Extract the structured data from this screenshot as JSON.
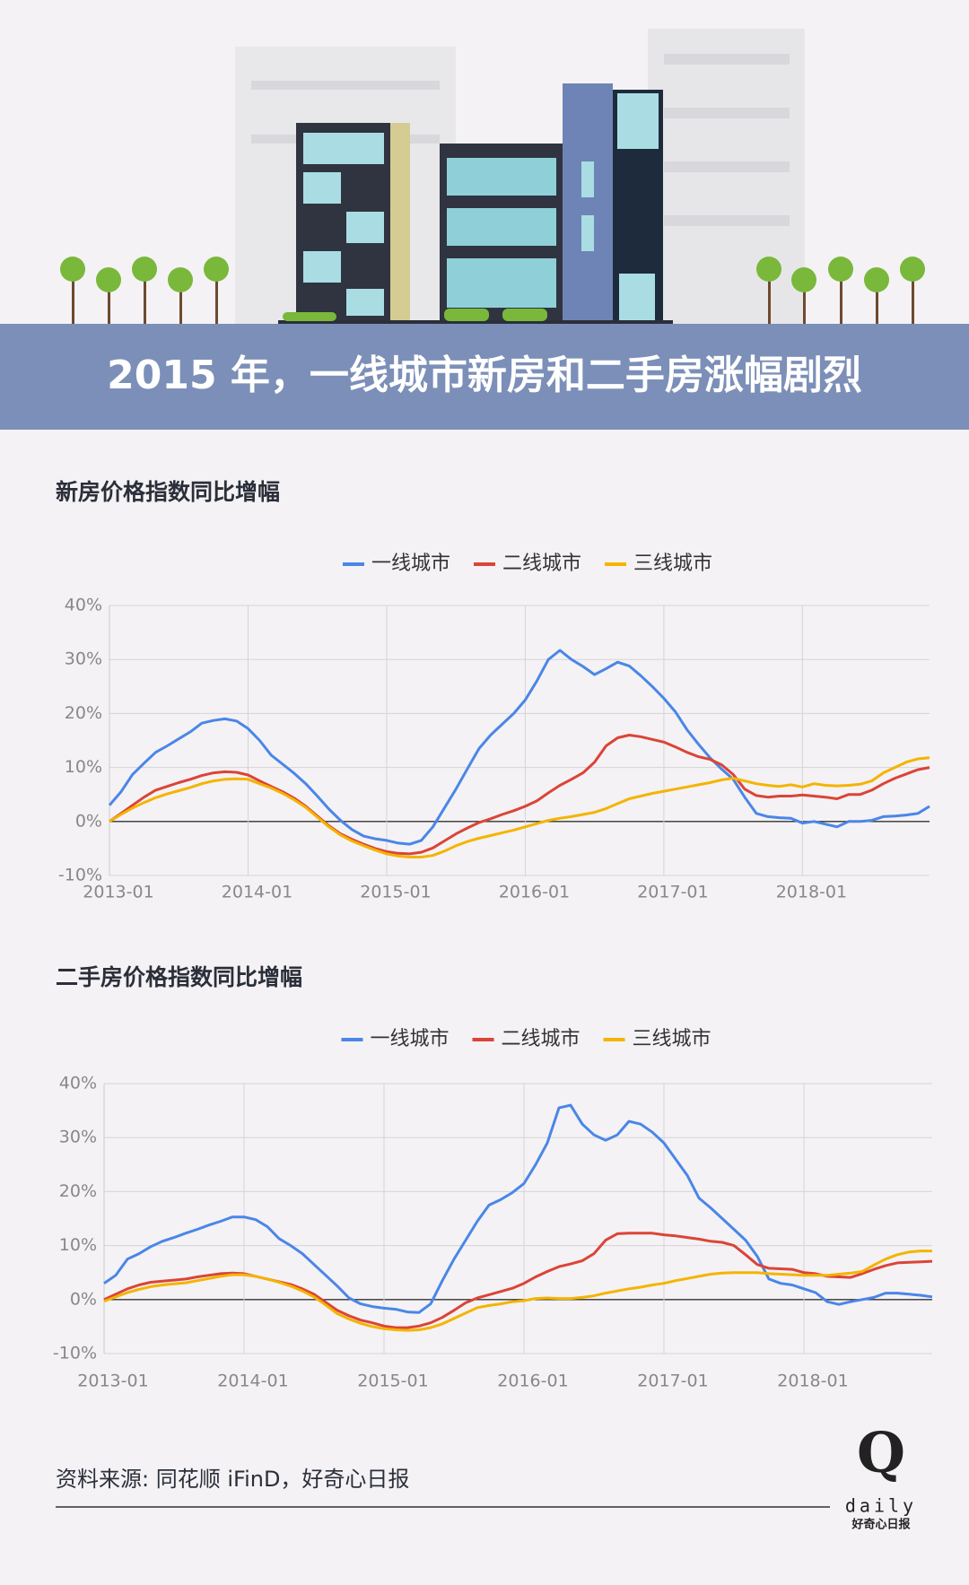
{
  "banner_title": "2015 年，一线城市新房和二手房涨幅剧烈",
  "source": "资料来源: 同花顺 iFinD，好奇心日报",
  "logo": {
    "mark": "Q",
    "wordmark": "daily",
    "tagline": "好奇心日报"
  },
  "chart_data": [
    {
      "type": "line",
      "title": "新房价格指数同比增幅",
      "grid": true,
      "legend": "top",
      "categories": [
        "2013-01",
        null,
        null,
        null,
        null,
        null,
        null,
        null,
        null,
        null,
        null,
        null,
        "2014-01",
        null,
        null,
        null,
        null,
        null,
        null,
        null,
        null,
        null,
        null,
        null,
        "2015-01",
        null,
        null,
        null,
        null,
        null,
        null,
        null,
        null,
        null,
        null,
        null,
        "2016-01",
        null,
        null,
        null,
        null,
        null,
        null,
        null,
        null,
        null,
        null,
        null,
        "2017-01",
        null,
        null,
        null,
        null,
        null,
        null,
        null,
        null,
        null,
        null,
        null,
        "2018-01",
        null,
        null,
        null,
        null,
        null,
        null,
        null,
        null,
        null,
        null,
        null
      ],
      "ylim": [
        -10,
        40
      ],
      "yticks": [
        {
          "value": -10,
          "label": "-10%"
        },
        {
          "value": 0,
          "label": "0%"
        },
        {
          "value": 10,
          "label": "10%"
        },
        {
          "value": 20,
          "label": "20%"
        },
        {
          "value": 30,
          "label": "30%"
        },
        {
          "value": 40,
          "label": "40%"
        }
      ],
      "series": [
        {
          "name": "一线城市",
          "color": "#4a86e8",
          "values": [
            3,
            5.5,
            8.7,
            10.8,
            12.8,
            14,
            15.3,
            16.6,
            18.2,
            18.7,
            19,
            18.6,
            17.2,
            15,
            12.3,
            10.6,
            8.9,
            7,
            4.7,
            2.3,
            0.2,
            -1.5,
            -2.7,
            -3.2,
            -3.5,
            -4,
            -4.2,
            -3.5,
            -1,
            2.5,
            6,
            9.8,
            13.5,
            16,
            18,
            20,
            22.5,
            26,
            30,
            31.7,
            30,
            28.7,
            27.2,
            28.3,
            29.5,
            28.8,
            27,
            25,
            22.8,
            20.3,
            17,
            14.3,
            11.8,
            9.7,
            7.8,
            4.5,
            1.5,
            0.9,
            0.7,
            0.6,
            -0.3,
            0,
            -0.5,
            -1,
            0,
            0,
            0.2,
            0.9,
            1,
            1.2,
            1.5,
            2.8
          ]
        },
        {
          "name": "二线城市",
          "color": "#db4437",
          "values": [
            0,
            1.5,
            3,
            4.5,
            5.8,
            6.5,
            7.2,
            7.8,
            8.5,
            9,
            9.2,
            9.1,
            8.6,
            7.5,
            6.5,
            5.5,
            4.3,
            2.8,
            1,
            -0.8,
            -2.3,
            -3.3,
            -4.2,
            -5,
            -5.6,
            -5.9,
            -6,
            -5.7,
            -4.9,
            -3.6,
            -2.3,
            -1.2,
            -0.2,
            0.5,
            1.3,
            2,
            2.8,
            3.8,
            5.3,
            6.7,
            7.8,
            9,
            11,
            14,
            15.5,
            16,
            15.7,
            15.2,
            14.7,
            13.8,
            12.8,
            12,
            11.5,
            10.5,
            8.7,
            6,
            4.8,
            4.5,
            4.7,
            4.7,
            4.9,
            4.7,
            4.5,
            4.2,
            5,
            5,
            5.8,
            7,
            8,
            8.8,
            9.6,
            10
          ]
        },
        {
          "name": "三线城市",
          "color": "#f4b400",
          "values": [
            0,
            1.3,
            2.5,
            3.5,
            4.4,
            5.1,
            5.7,
            6.3,
            7,
            7.5,
            7.8,
            7.9,
            7.8,
            7,
            6.2,
            5.2,
            4,
            2.6,
            0.8,
            -1,
            -2.5,
            -3.6,
            -4.5,
            -5.3,
            -6,
            -6.4,
            -6.6,
            -6.6,
            -6.3,
            -5.5,
            -4.5,
            -3.7,
            -3.1,
            -2.6,
            -2.1,
            -1.6,
            -1,
            -0.4,
            0.2,
            0.6,
            0.9,
            1.3,
            1.7,
            2.4,
            3.3,
            4.2,
            4.7,
            5.2,
            5.6,
            6,
            6.4,
            6.8,
            7.2,
            7.7,
            8,
            7.5,
            7,
            6.7,
            6.5,
            6.8,
            6.4,
            7,
            6.7,
            6.6,
            6.7,
            6.9,
            7.5,
            9,
            10,
            11,
            11.6,
            11.8
          ]
        }
      ]
    },
    {
      "type": "line",
      "title": "二手房价格指数同比增幅",
      "grid": true,
      "legend": "top",
      "categories": [
        "2013-01",
        null,
        null,
        null,
        null,
        null,
        null,
        null,
        null,
        null,
        null,
        null,
        "2014-01",
        null,
        null,
        null,
        null,
        null,
        null,
        null,
        null,
        null,
        null,
        null,
        "2015-01",
        null,
        null,
        null,
        null,
        null,
        null,
        null,
        null,
        null,
        null,
        null,
        "2016-01",
        null,
        null,
        null,
        null,
        null,
        null,
        null,
        null,
        null,
        null,
        null,
        "2017-01",
        null,
        null,
        null,
        null,
        null,
        null,
        null,
        null,
        null,
        null,
        null,
        "2018-01",
        null,
        null,
        null,
        null,
        null,
        null,
        null,
        null,
        null,
        null,
        null
      ],
      "ylim": [
        -10,
        40
      ],
      "yticks": [
        {
          "value": -10,
          "label": "-10%"
        },
        {
          "value": 0,
          "label": "0%"
        },
        {
          "value": 10,
          "label": "10%"
        },
        {
          "value": 20,
          "label": "20%"
        },
        {
          "value": 30,
          "label": "30%"
        },
        {
          "value": 40,
          "label": "40%"
        }
      ],
      "series": [
        {
          "name": "一线城市",
          "color": "#4a86e8",
          "values": [
            3,
            4.5,
            7.5,
            8.5,
            9.8,
            10.8,
            11.5,
            12.3,
            13,
            13.8,
            14.5,
            15.3,
            15.3,
            14.8,
            13.5,
            11.3,
            10,
            8.5,
            6.5,
            4.5,
            2.5,
            0.3,
            -0.8,
            -1.3,
            -1.6,
            -1.8,
            -2.3,
            -2.4,
            -0.8,
            3.5,
            7.5,
            11,
            14.5,
            17.5,
            18.5,
            19.8,
            21.5,
            25,
            29,
            35.5,
            36,
            32.5,
            30.5,
            29.5,
            30.5,
            33,
            32.5,
            31,
            29,
            26,
            23,
            18.8,
            17,
            15,
            13,
            11,
            8,
            3.8,
            3,
            2.7,
            2,
            1.3,
            -0.4,
            -0.9,
            -0.4,
            0,
            0.4,
            1.2,
            1.2,
            1,
            0.8,
            0.5
          ]
        },
        {
          "name": "二线城市",
          "color": "#db4437",
          "values": [
            0,
            1,
            2,
            2.7,
            3.2,
            3.4,
            3.6,
            3.8,
            4.2,
            4.5,
            4.8,
            4.9,
            4.8,
            4.3,
            3.8,
            3.3,
            2.8,
            2,
            1,
            -0.5,
            -2,
            -3,
            -3.8,
            -4.3,
            -4.9,
            -5.2,
            -5.2,
            -4.9,
            -4.3,
            -3.3,
            -2,
            -0.6,
            0.3,
            0.9,
            1.5,
            2.1,
            3,
            4.2,
            5.2,
            6.1,
            6.6,
            7.2,
            8.5,
            11,
            12.2,
            12.3,
            12.3,
            12.3,
            12,
            11.8,
            11.5,
            11.2,
            10.8,
            10.6,
            10,
            8.3,
            6.5,
            5.8,
            5.7,
            5.6,
            5,
            4.8,
            4.3,
            4.2,
            4.1,
            4.8,
            5.6,
            6.3,
            6.8,
            6.9,
            7,
            7.1
          ]
        },
        {
          "name": "三线城市",
          "color": "#f4b400",
          "values": [
            -0.3,
            0.5,
            1.3,
            1.9,
            2.4,
            2.7,
            2.9,
            3.1,
            3.5,
            3.9,
            4.3,
            4.6,
            4.6,
            4.3,
            3.8,
            3.2,
            2.5,
            1.6,
            0.5,
            -1,
            -2.6,
            -3.6,
            -4.4,
            -5,
            -5.4,
            -5.6,
            -5.7,
            -5.6,
            -5.2,
            -4.5,
            -3.5,
            -2.5,
            -1.5,
            -1.1,
            -0.8,
            -0.4,
            -0.2,
            0.2,
            0.3,
            0.2,
            0.2,
            0.4,
            0.7,
            1.2,
            1.6,
            2,
            2.3,
            2.7,
            3,
            3.5,
            3.9,
            4.3,
            4.7,
            4.9,
            5,
            5,
            5,
            4.8,
            4.7,
            4.6,
            4.5,
            4.5,
            4.5,
            4.7,
            4.9,
            5.2,
            6.4,
            7.5,
            8.3,
            8.8,
            9,
            9
          ]
        }
      ]
    }
  ]
}
